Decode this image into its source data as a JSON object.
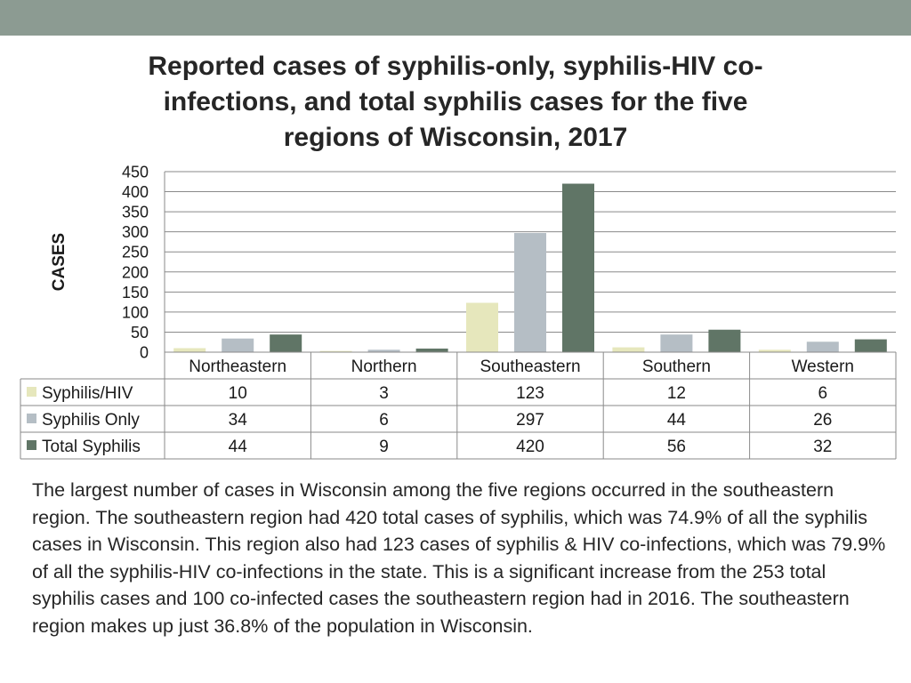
{
  "theme": {
    "band_color": "#8c9b92"
  },
  "chart_data": {
    "type": "bar",
    "title": "Reported cases of syphilis-only, syphilis-HIV co-infections, and total syphilis cases for the five regions of Wisconsin, 2017",
    "ylabel": "CASES",
    "xlabel": "",
    "ylim": [
      0,
      450
    ],
    "yticks": [
      0,
      50,
      100,
      150,
      200,
      250,
      300,
      350,
      400,
      450
    ],
    "grid": true,
    "legend_placement": "data-table-left",
    "categories": [
      "Northeastern",
      "Northern",
      "Southeastern",
      "Southern",
      "Western"
    ],
    "series": [
      {
        "name": "Syphilis/HIV",
        "color": "#e6e7bc",
        "values": [
          10,
          3,
          123,
          12,
          6
        ]
      },
      {
        "name": "Syphilis Only",
        "color": "#b5bec5",
        "values": [
          34,
          6,
          297,
          44,
          26
        ]
      },
      {
        "name": "Total Syphilis",
        "color": "#607566",
        "values": [
          44,
          9,
          420,
          56,
          32
        ]
      }
    ]
  },
  "summary_text": "The largest number of cases in Wisconsin among the five regions occurred in the southeastern region. The southeastern region had 420 total cases of syphilis, which was 74.9% of all the syphilis cases in Wisconsin. This region also had 123 cases of syphilis & HIV co-infections, which was 79.9% of all the syphilis-HIV co-infections in the state. This is a significant increase from the 253 total syphilis cases and 100 co-infected cases the southeastern region had in 2016. The southeastern region makes up just 36.8% of the population in Wisconsin."
}
